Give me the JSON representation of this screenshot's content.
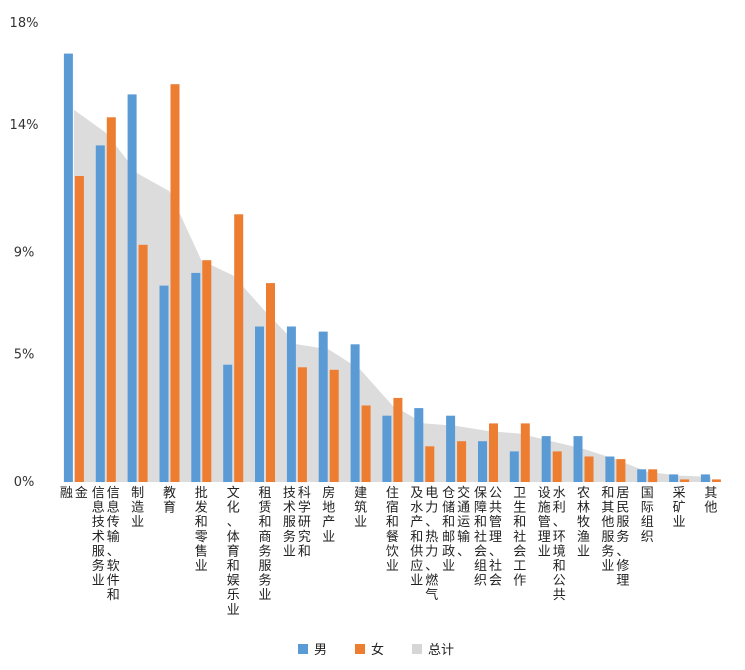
{
  "chart_data": {
    "type": "bar",
    "y_ticks": [
      "18%",
      "14%",
      "9%",
      "5%",
      "0%"
    ],
    "y_tick_values": [
      18,
      14,
      9,
      5,
      0
    ],
    "ylim": [
      0,
      18
    ],
    "grid": false,
    "legend_position": "bottom",
    "categories": [
      [
        "金",
        "融"
      ],
      [
        "信息传输、软件和",
        "信息技术服务业"
      ],
      [
        "制造业"
      ],
      [
        "教育"
      ],
      [
        "批发和零售业"
      ],
      [
        "文化、体育和娱乐业"
      ],
      [
        "租赁和商务服务业"
      ],
      [
        "科学研究和",
        "技术服务业"
      ],
      [
        "房地产业"
      ],
      [
        "建筑业"
      ],
      [
        "住宿和餐饮业"
      ],
      [
        "电力、热力、燃气",
        "及水产和供应业"
      ],
      [
        "交通运输、",
        "仓储和邮政业"
      ],
      [
        "公共管理、社会",
        "保障和社会组织"
      ],
      [
        "卫生和社会工作"
      ],
      [
        "水利、环境和公共",
        "设施管理业"
      ],
      [
        "农林牧渔业"
      ],
      [
        "居民服务、修理",
        "和其他服务业"
      ],
      [
        "国际组织"
      ],
      [
        "采矿业"
      ],
      [
        "其他"
      ]
    ],
    "series": [
      {
        "name": "男",
        "type": "bar",
        "color": "#5b9bd5",
        "values": [
          16.8,
          13.2,
          15.2,
          7.7,
          8.2,
          4.6,
          6.1,
          6.1,
          5.9,
          5.4,
          2.6,
          2.9,
          2.6,
          1.6,
          1.2,
          1.8,
          1.8,
          1.0,
          0.5,
          0.3,
          0.3
        ]
      },
      {
        "name": "女",
        "type": "bar",
        "color": "#ed7d31",
        "values": [
          12.0,
          14.3,
          9.3,
          15.6,
          8.7,
          10.5,
          7.8,
          4.5,
          4.4,
          3.0,
          3.3,
          1.4,
          1.6,
          2.3,
          2.3,
          1.2,
          1.0,
          0.9,
          0.5,
          0.1,
          0.1
        ]
      },
      {
        "name": "总计",
        "type": "area",
        "color": "#d6d6d6",
        "values": [
          14.6,
          13.7,
          12.1,
          11.4,
          8.7,
          8.1,
          6.7,
          5.4,
          5.2,
          4.4,
          3.0,
          2.3,
          2.2,
          2.0,
          1.9,
          1.6,
          1.3,
          0.9,
          0.4,
          0.25,
          0.2
        ]
      }
    ]
  }
}
